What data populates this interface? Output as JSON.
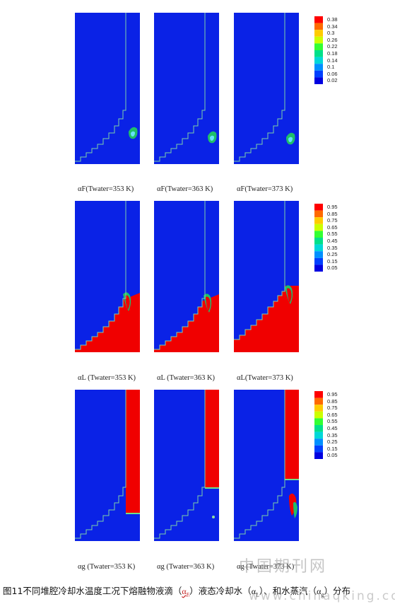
{
  "figure": {
    "rows": [
      {
        "variable": "F",
        "labels": [
          "αF(Twater=353 K)",
          "αF(Twater=363 K)",
          "αF(Twater=373 K)"
        ],
        "legend": [
          "0.38",
          "0.34",
          "0.3",
          "0.26",
          "0.22",
          "0.18",
          "0.14",
          "0.1",
          "0.06",
          "0.02"
        ]
      },
      {
        "variable": "L",
        "labels": [
          "αL (Twater=353 K)",
          "αL (Twater=363 K)",
          "αL(Twater=373 K)"
        ],
        "legend": [
          "0.95",
          "0.85",
          "0.75",
          "0.65",
          "0.55",
          "0.45",
          "0.35",
          "0.25",
          "0.15",
          "0.05"
        ]
      },
      {
        "variable": "g",
        "labels": [
          "αg (Twater=353 K)",
          "αg (Twater=363 K)",
          "αg (Twater=373 K)"
        ],
        "legend": [
          "0.95",
          "0.85",
          "0.75",
          "0.65",
          "0.55",
          "0.45",
          "0.35",
          "0.25",
          "0.15",
          "0.05"
        ]
      }
    ],
    "colors": {
      "background": "#0a22e6",
      "liquid": "#f00000",
      "wall": "#7fd0a8"
    }
  },
  "caption": {
    "prefix": "图11不同堆腔冷却水温度工况下熔融物液滴（",
    "sym_f": "α",
    "sym_f_sub": "F",
    "mid1": "）液态冷却水（",
    "sym_l": "α",
    "sym_l_sub": "L",
    "mid2": "）、和水蒸汽（",
    "sym_g": "α",
    "sym_g_sub": "g",
    "suffix": "）分布"
  },
  "watermark": {
    "text1": "中国期刊网",
    "text2": "www.chinaqking.com"
  }
}
